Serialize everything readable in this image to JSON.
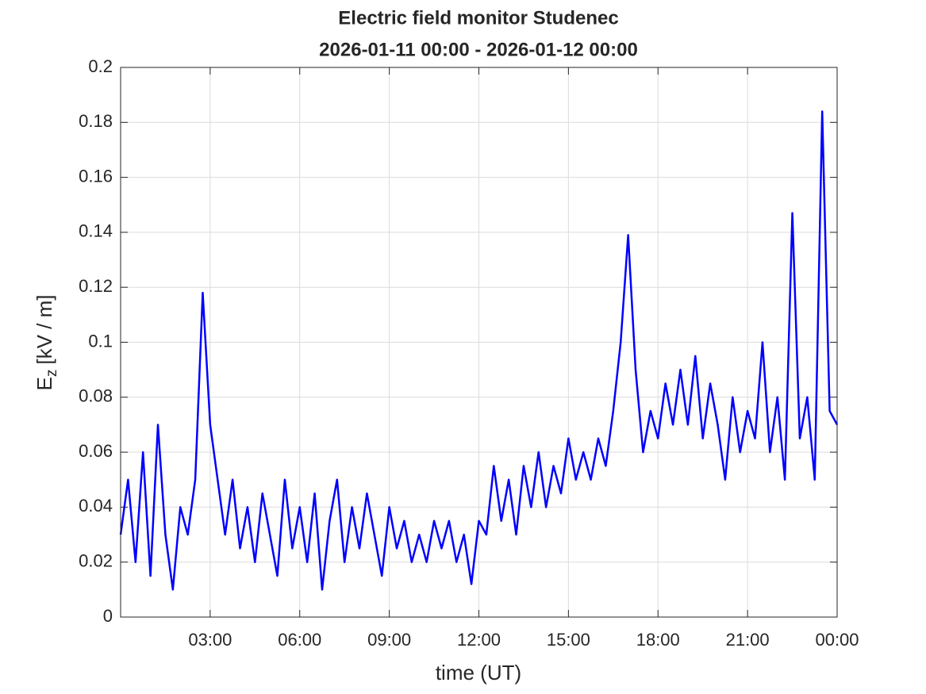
{
  "chart_data": {
    "type": "line",
    "title": [
      "Electric field monitor Studenec",
      "2026-01-11 00:00 - 2026-01-12 00:00"
    ],
    "xlabel": "time (UT)",
    "ylabel": {
      "main": "E",
      "sub": "z",
      "unit": "[kV / m]"
    },
    "color": "#0000ff",
    "grid": true,
    "xlim": [
      0,
      24
    ],
    "xticks": [
      {
        "value": 3,
        "label": "03:00"
      },
      {
        "value": 6,
        "label": "06:00"
      },
      {
        "value": 9,
        "label": "09:00"
      },
      {
        "value": 12,
        "label": "12:00"
      },
      {
        "value": 15,
        "label": "15:00"
      },
      {
        "value": 18,
        "label": "18:00"
      },
      {
        "value": 21,
        "label": "21:00"
      },
      {
        "value": 24,
        "label": "00:00"
      }
    ],
    "ylim": [
      0,
      0.2
    ],
    "yticks": [
      0,
      0.02,
      0.04,
      0.06,
      0.08,
      0.1,
      0.12,
      0.14,
      0.16,
      0.18,
      0.2
    ],
    "x": [
      0,
      0.25,
      0.5,
      0.75,
      1,
      1.25,
      1.5,
      1.75,
      2,
      2.25,
      2.5,
      2.75,
      3,
      3.25,
      3.5,
      3.75,
      4,
      4.25,
      4.5,
      4.75,
      5,
      5.25,
      5.5,
      5.75,
      6,
      6.25,
      6.5,
      6.75,
      7,
      7.25,
      7.5,
      7.75,
      8,
      8.25,
      8.5,
      8.75,
      9,
      9.25,
      9.5,
      9.75,
      10,
      10.25,
      10.5,
      10.75,
      11,
      11.25,
      11.5,
      11.75,
      12,
      12.25,
      12.5,
      12.75,
      13,
      13.25,
      13.5,
      13.75,
      14,
      14.25,
      14.5,
      14.75,
      15,
      15.25,
      15.5,
      15.75,
      16,
      16.25,
      16.5,
      16.75,
      17,
      17.25,
      17.5,
      17.75,
      18,
      18.25,
      18.5,
      18.75,
      19,
      19.25,
      19.5,
      19.75,
      20,
      20.25,
      20.5,
      20.75,
      21,
      21.25,
      21.5,
      21.75,
      22,
      22.25,
      22.5,
      22.75,
      23,
      23.25,
      23.5,
      23.75,
      24
    ],
    "values": [
      0.03,
      0.05,
      0.02,
      0.06,
      0.015,
      0.07,
      0.03,
      0.01,
      0.04,
      0.03,
      0.05,
      0.118,
      0.07,
      0.05,
      0.03,
      0.05,
      0.025,
      0.04,
      0.02,
      0.045,
      0.03,
      0.015,
      0.05,
      0.025,
      0.04,
      0.02,
      0.045,
      0.01,
      0.035,
      0.05,
      0.02,
      0.04,
      0.025,
      0.045,
      0.03,
      0.015,
      0.04,
      0.025,
      0.035,
      0.02,
      0.03,
      0.02,
      0.035,
      0.025,
      0.035,
      0.02,
      0.03,
      0.012,
      0.035,
      0.03,
      0.055,
      0.035,
      0.05,
      0.03,
      0.055,
      0.04,
      0.06,
      0.04,
      0.055,
      0.045,
      0.065,
      0.05,
      0.06,
      0.05,
      0.065,
      0.055,
      0.075,
      0.1,
      0.139,
      0.09,
      0.06,
      0.075,
      0.065,
      0.085,
      0.07,
      0.09,
      0.07,
      0.095,
      0.065,
      0.085,
      0.07,
      0.05,
      0.08,
      0.06,
      0.075,
      0.065,
      0.1,
      0.06,
      0.08,
      0.05,
      0.147,
      0.065,
      0.08,
      0.05,
      0.184,
      0.075,
      0.07
    ]
  }
}
